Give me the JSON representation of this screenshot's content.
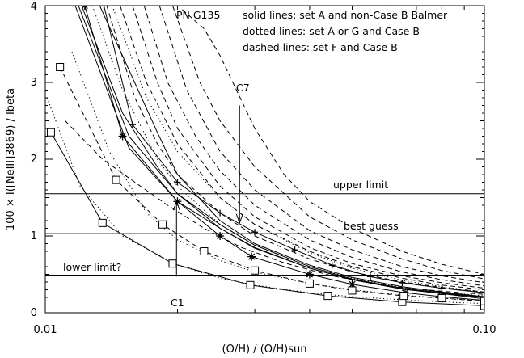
{
  "chart_data": {
    "type": "line",
    "xscale": "log",
    "xlim": [
      0.01,
      0.1
    ],
    "ylim": [
      0,
      4
    ],
    "xlabel": "(O/H) / (O/H)sun",
    "ylabel": "100 × I([NeIII]3869) / Ibeta",
    "x_ticks": [
      0.01,
      0.1
    ],
    "x_tick_labels": [
      "0.01",
      "0.10"
    ],
    "y_ticks": [
      0,
      1,
      2,
      3,
      4
    ],
    "y_tick_labels": [
      "0",
      "1",
      "2",
      "3",
      "4"
    ],
    "grid": false,
    "annotations": {
      "object": "PN G135",
      "legend_lines": [
        "solid lines: set A and non-Case B Balmer",
        "dotted lines: set A or G and Case B",
        "dashed lines: set F and Case B"
      ],
      "c7": "C7",
      "c1": "C1"
    },
    "reference_lines": [
      {
        "label": "upper limit",
        "y": 1.55
      },
      {
        "label": "best guess",
        "y": 1.03
      },
      {
        "label": "lower limit?",
        "y": 0.49
      }
    ],
    "arrows": [
      {
        "label": "C7",
        "x": 0.0277,
        "y_from": 2.7,
        "y_to": 1.17
      },
      {
        "label": "C1",
        "x": 0.0199,
        "y_from": 0.47,
        "y_to": 1.45
      }
    ],
    "series": [
      {
        "style": "solid",
        "marker": "square",
        "x": [
          0.0103,
          0.0135,
          0.0195,
          0.0293,
          0.044,
          0.065,
          0.1
        ],
        "y": [
          2.35,
          1.17,
          0.64,
          0.36,
          0.22,
          0.14,
          0.09
        ]
      },
      {
        "style": "solid",
        "marker": "none",
        "x": [
          0.0117,
          0.0155,
          0.02,
          0.025,
          0.03,
          0.04,
          0.05,
          0.065,
          0.08,
          0.1
        ],
        "y": [
          4.0,
          2.15,
          1.45,
          1.1,
          0.84,
          0.58,
          0.43,
          0.31,
          0.25,
          0.2
        ]
      },
      {
        "style": "solid",
        "marker": "none",
        "x": [
          0.0119,
          0.0155,
          0.02,
          0.025,
          0.03,
          0.04,
          0.05,
          0.065,
          0.08,
          0.1
        ],
        "y": [
          4.0,
          2.3,
          1.55,
          1.15,
          0.88,
          0.6,
          0.44,
          0.32,
          0.26,
          0.2
        ]
      },
      {
        "style": "solid",
        "marker": "none",
        "x": [
          0.0121,
          0.015,
          0.018,
          0.02,
          0.025,
          0.03,
          0.04,
          0.05,
          0.065,
          0.08,
          0.1
        ],
        "y": [
          4.0,
          2.6,
          1.9,
          1.55,
          1.1,
          0.85,
          0.58,
          0.43,
          0.31,
          0.25,
          0.18
        ]
      },
      {
        "style": "solid",
        "marker": "asterisk",
        "x": [
          0.0123,
          0.015,
          0.02,
          0.025,
          0.0295,
          0.04,
          0.05,
          0.066,
          0.08,
          0.1
        ],
        "y": [
          4.0,
          2.3,
          1.45,
          1.0,
          0.73,
          0.5,
          0.37,
          0.26,
          0.21,
          0.16
        ]
      },
      {
        "style": "solid",
        "marker": "none",
        "x": [
          0.0133,
          0.018,
          0.02,
          0.025,
          0.03,
          0.04,
          0.05,
          0.065,
          0.08,
          0.1
        ],
        "y": [
          4.0,
          2.35,
          1.8,
          1.2,
          0.9,
          0.62,
          0.46,
          0.34,
          0.27,
          0.21
        ]
      },
      {
        "style": "solid",
        "marker": "plus",
        "x": [
          0.0136,
          0.0158,
          0.02,
          0.025,
          0.03,
          0.037,
          0.045,
          0.055,
          0.065,
          0.08,
          0.1
        ],
        "y": [
          4.0,
          2.45,
          1.7,
          1.3,
          1.05,
          0.82,
          0.62,
          0.47,
          0.39,
          0.32,
          0.26
        ]
      },
      {
        "style": "dotted",
        "marker": "none",
        "x": [
          0.0101,
          0.012,
          0.015,
          0.02,
          0.025,
          0.03,
          0.04,
          0.05,
          0.065,
          0.08,
          0.1
        ],
        "y": [
          2.8,
          1.65,
          1.0,
          0.62,
          0.45,
          0.36,
          0.26,
          0.21,
          0.17,
          0.14,
          0.12
        ]
      },
      {
        "style": "dotted",
        "marker": "none",
        "x": [
          0.0115,
          0.014,
          0.017,
          0.02,
          0.025,
          0.03,
          0.04,
          0.05,
          0.065,
          0.08,
          0.1
        ],
        "y": [
          3.4,
          2.1,
          1.3,
          0.95,
          0.68,
          0.53,
          0.38,
          0.3,
          0.23,
          0.19,
          0.16
        ]
      },
      {
        "style": "dotted",
        "marker": "none",
        "x": [
          0.0128,
          0.015,
          0.018,
          0.02,
          0.025,
          0.03,
          0.04,
          0.05,
          0.065,
          0.08,
          0.1
        ],
        "y": [
          4.0,
          2.9,
          2.0,
          1.65,
          1.15,
          0.88,
          0.6,
          0.45,
          0.33,
          0.27,
          0.22
        ]
      },
      {
        "style": "dotted",
        "marker": "none",
        "x": [
          0.0142,
          0.017,
          0.02,
          0.025,
          0.03,
          0.04,
          0.05,
          0.065,
          0.08,
          0.1
        ],
        "y": [
          4.0,
          2.8,
          2.1,
          1.5,
          1.15,
          0.78,
          0.58,
          0.42,
          0.34,
          0.27
        ]
      },
      {
        "style": "dashed",
        "marker": "square",
        "x": [
          0.0108,
          0.0145,
          0.0185,
          0.023,
          0.03,
          0.04,
          0.05,
          0.0655,
          0.08,
          0.1
        ],
        "y": [
          3.2,
          1.73,
          1.15,
          0.8,
          0.55,
          0.38,
          0.29,
          0.22,
          0.19,
          0.15
        ]
      },
      {
        "style": "dashed",
        "marker": "none",
        "x": [
          0.0111,
          0.0135,
          0.016,
          0.019,
          0.023,
          0.028,
          0.035,
          0.045,
          0.06,
          0.08,
          0.1
        ],
        "y": [
          2.5,
          2.0,
          1.7,
          1.4,
          1.1,
          0.85,
          0.65,
          0.48,
          0.35,
          0.28,
          0.24
        ]
      },
      {
        "style": "dashed",
        "marker": "none",
        "x": [
          0.0138,
          0.016,
          0.018,
          0.02,
          0.025,
          0.03,
          0.04,
          0.05,
          0.065,
          0.08,
          0.1
        ],
        "y": [
          4.0,
          2.8,
          2.2,
          1.8,
          1.3,
          1.0,
          0.7,
          0.53,
          0.4,
          0.33,
          0.27
        ]
      },
      {
        "style": "dashed",
        "marker": "none",
        "x": [
          0.0148,
          0.017,
          0.02,
          0.025,
          0.03,
          0.04,
          0.05,
          0.065,
          0.08,
          0.1
        ],
        "y": [
          4.0,
          3.0,
          2.2,
          1.5,
          1.15,
          0.8,
          0.6,
          0.45,
          0.36,
          0.3
        ]
      },
      {
        "style": "dashed",
        "marker": "none",
        "x": [
          0.0158,
          0.018,
          0.02,
          0.025,
          0.03,
          0.04,
          0.05,
          0.065,
          0.08,
          0.1
        ],
        "y": [
          4.0,
          3.0,
          2.4,
          1.65,
          1.25,
          0.85,
          0.64,
          0.48,
          0.39,
          0.32
        ]
      },
      {
        "style": "dashed",
        "marker": "none",
        "x": [
          0.0168,
          0.019,
          0.022,
          0.025,
          0.03,
          0.04,
          0.05,
          0.065,
          0.08,
          0.1
        ],
        "y": [
          4.0,
          3.0,
          2.3,
          1.85,
          1.4,
          0.95,
          0.72,
          0.53,
          0.43,
          0.35
        ]
      },
      {
        "style": "dashed",
        "marker": "none",
        "x": [
          0.0182,
          0.021,
          0.025,
          0.03,
          0.04,
          0.05,
          0.065,
          0.08,
          0.1
        ],
        "y": [
          4.0,
          2.9,
          2.1,
          1.6,
          1.07,
          0.82,
          0.6,
          0.48,
          0.39
        ]
      },
      {
        "style": "dashed",
        "marker": "none",
        "x": [
          0.0195,
          0.0225,
          0.025,
          0.03,
          0.04,
          0.05,
          0.065,
          0.08,
          0.1
        ],
        "y": [
          4.0,
          3.0,
          2.5,
          1.9,
          1.25,
          0.95,
          0.7,
          0.55,
          0.44
        ]
      },
      {
        "style": "dashed",
        "marker": "none",
        "x": [
          0.0205,
          0.023,
          0.025,
          0.03,
          0.035,
          0.04,
          0.05,
          0.065,
          0.08,
          0.1
        ],
        "y": [
          3.95,
          3.7,
          3.35,
          2.4,
          1.8,
          1.45,
          1.1,
          0.8,
          0.63,
          0.5
        ]
      }
    ]
  }
}
